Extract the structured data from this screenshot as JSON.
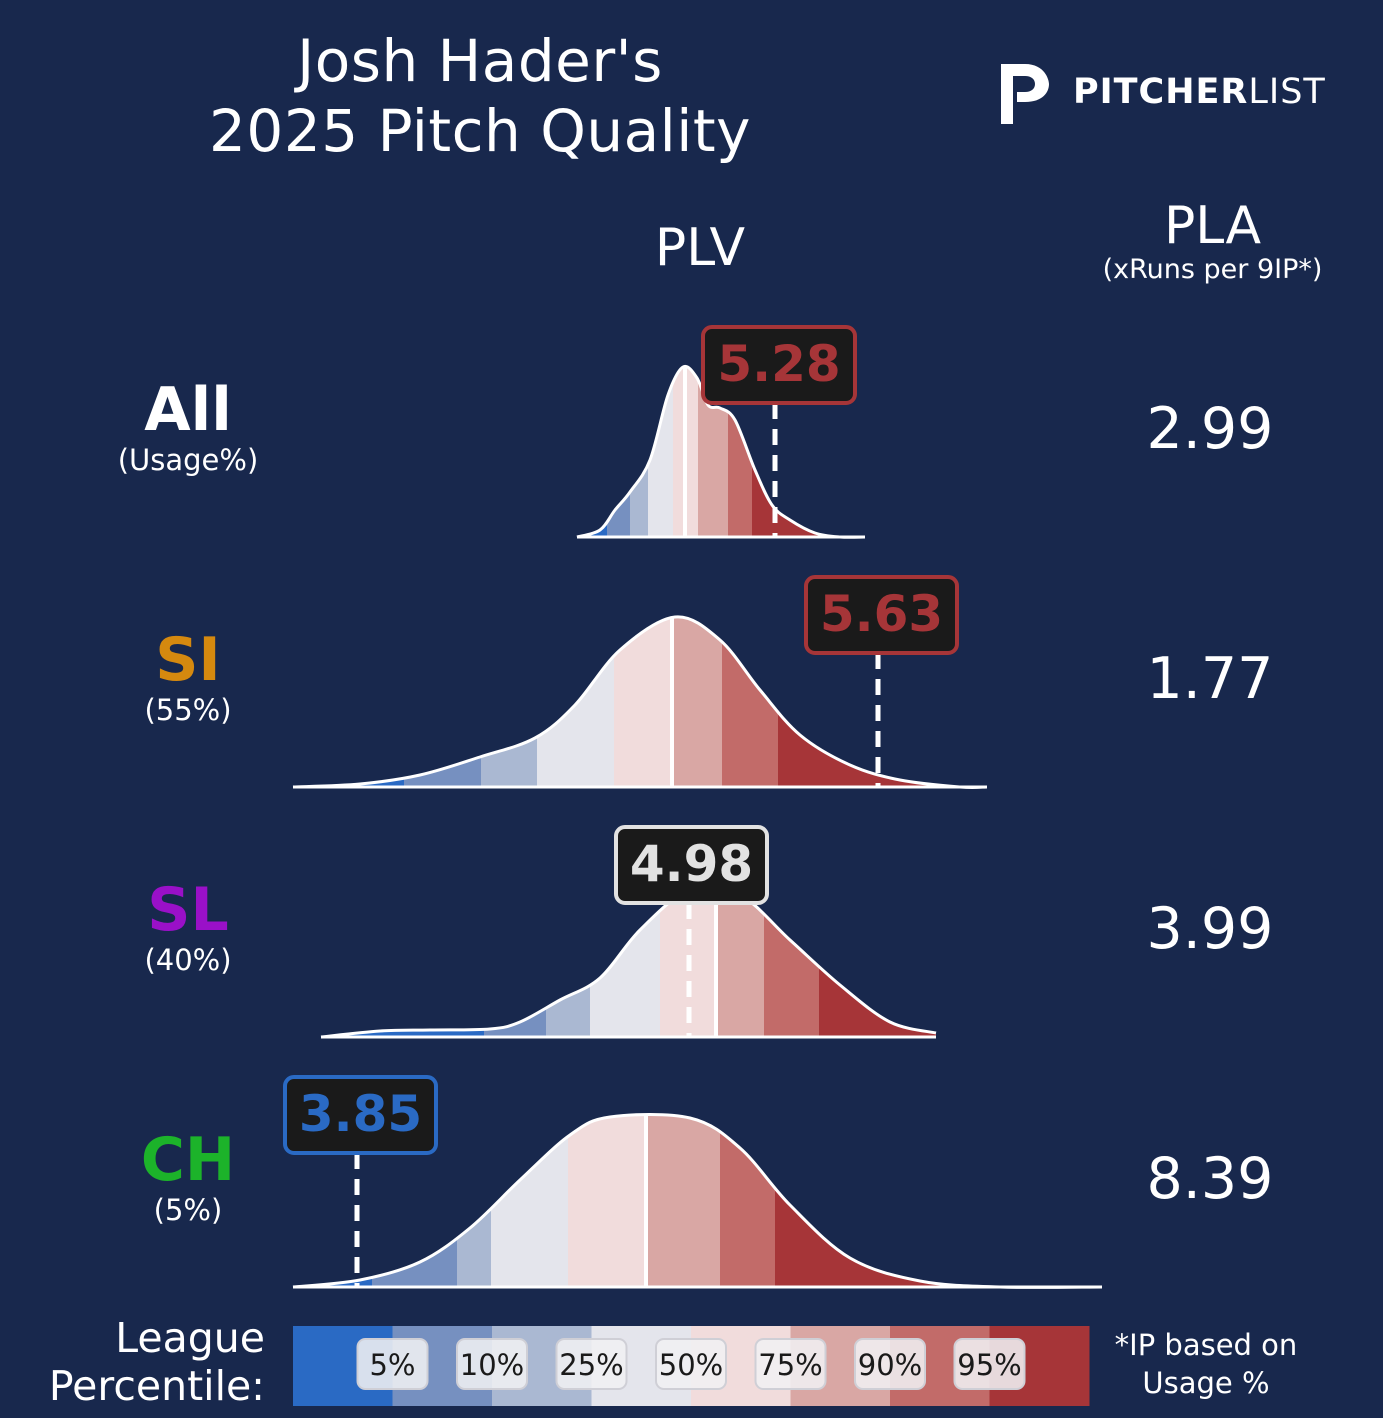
{
  "title_line1": "Josh Hader's",
  "title_line2": "2025 Pitch Quality",
  "brand": {
    "bold": "PITCHER",
    "light": "LIST"
  },
  "headers": {
    "plv": "PLV",
    "pla": "PLA",
    "pla_sub": "(xRuns per 9IP*)"
  },
  "legend": {
    "title_line1": "League",
    "title_line2": "Percentile:",
    "labels": [
      "5%",
      "10%",
      "25%",
      "50%",
      "75%",
      "90%",
      "95%"
    ],
    "colors": [
      "#2a6ac4",
      "#7690c0",
      "#aab8d2",
      "#e4e5ec",
      "#f1dcdc",
      "#d9a7a4",
      "#c26b69",
      "#a63538"
    ]
  },
  "footnote_line1": "*IP based on",
  "footnote_line2": "Usage %",
  "colors": {
    "background": "#18284d",
    "SI": "#d5890f",
    "SL": "#9a10c8",
    "CH": "#1cb32a",
    "All": "#ffffff"
  },
  "chart_data": {
    "type": "ridgeline",
    "x_axis": "PLV",
    "rows": [
      {
        "name": "All",
        "usage": "(Usage%)",
        "plv": "5.28",
        "pla": "2.99",
        "badge_color": "#a63538"
      },
      {
        "name": "SI",
        "usage": "(55%)",
        "plv": "5.63",
        "pla": "1.77",
        "badge_color": "#a63538"
      },
      {
        "name": "SL",
        "usage": "(40%)",
        "plv": "4.98",
        "pla": "3.99",
        "badge_color": "#e2e2e2"
      },
      {
        "name": "CH",
        "usage": "(5%)",
        "plv": "3.85",
        "pla": "8.39",
        "badge_color": "#2a6ac4"
      }
    ]
  }
}
